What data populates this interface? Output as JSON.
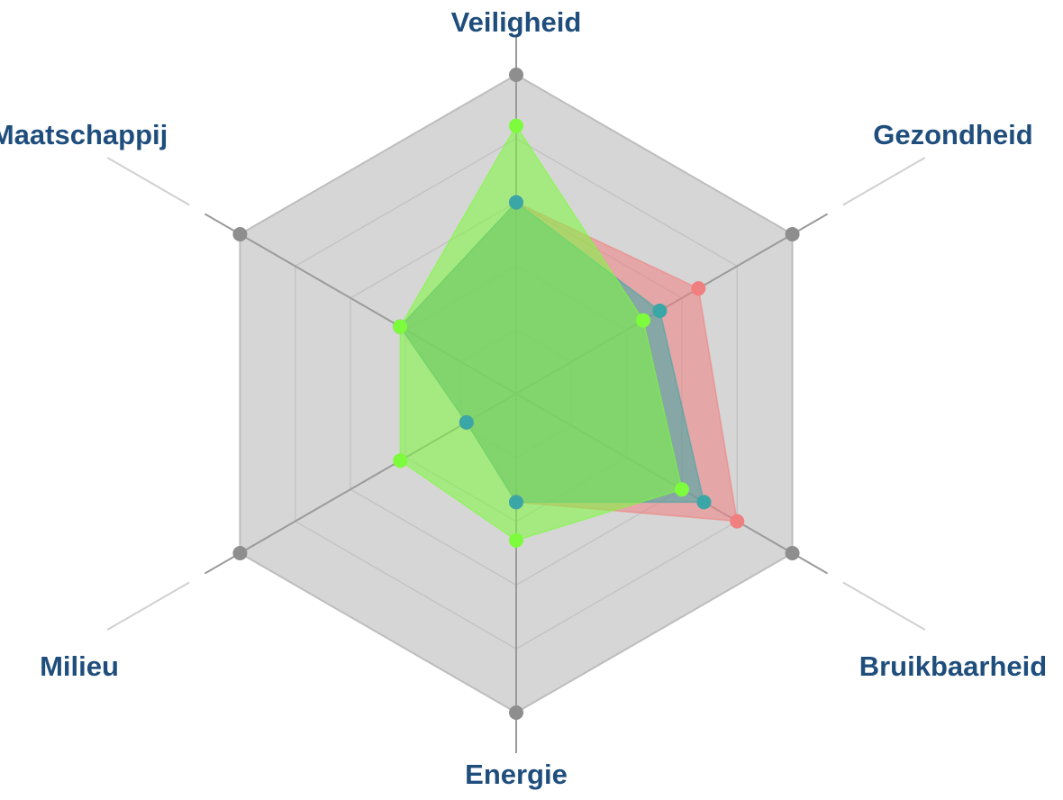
{
  "chart_data": {
    "type": "radar",
    "categories": [
      "Veiligheid",
      "Gezondheid",
      "Bruikbaarheid",
      "Energie",
      "Milieu",
      "Maatschappij"
    ],
    "ylim": [
      0,
      5
    ],
    "series": [
      {
        "color": "#f08080",
        "values": [
          3.0,
          3.3,
          4.0,
          1.7,
          0.9,
          2.1
        ]
      },
      {
        "color": "#3aa6a6",
        "values": [
          3.0,
          2.6,
          3.4,
          1.7,
          0.9,
          2.1
        ]
      },
      {
        "color": "#7cfc3c",
        "values": [
          4.2,
          2.3,
          3.0,
          2.3,
          2.1,
          2.1
        ]
      }
    ]
  }
}
